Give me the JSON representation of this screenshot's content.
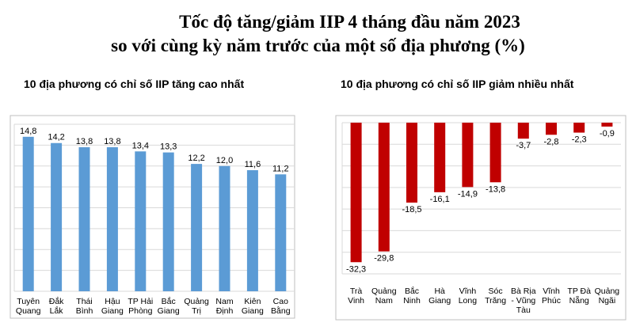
{
  "title_line1": "Tốc độ tăng/giảm IIP 4 tháng đầu năm 2023",
  "title_line2": "so với cùng kỳ năm trước của một số địa phương (%)",
  "chart_data": [
    {
      "type": "bar",
      "title": "10 địa phương có chỉ số IIP tăng cao nhất",
      "categories": [
        [
          "Tuyên",
          "Quang"
        ],
        [
          "Đắk",
          "Lắk"
        ],
        [
          "Thái",
          "Bình"
        ],
        [
          "Hậu",
          "Giang"
        ],
        [
          "TP Hải",
          "Phòng"
        ],
        [
          "Bắc",
          "Giang"
        ],
        [
          "Quảng",
          "Trị"
        ],
        [
          "Nam",
          "Định"
        ],
        [
          "Kiên",
          "Giang"
        ],
        [
          "Cao",
          "Bằng"
        ]
      ],
      "values": [
        14.8,
        14.2,
        13.8,
        13.8,
        13.4,
        13.3,
        12.2,
        12.0,
        11.6,
        11.2
      ],
      "value_labels": [
        "14,8",
        "14,2",
        "13,8",
        "13,8",
        "13,4",
        "13,3",
        "12,2",
        "12,0",
        "11,6",
        "11,2"
      ],
      "ylim": [
        0,
        16
      ],
      "grid": true,
      "color": "#5B9BD5"
    },
    {
      "type": "bar",
      "title": "10 địa phương có chỉ số IIP giảm nhiều nhất",
      "categories": [
        [
          "Trà",
          "Vinh"
        ],
        [
          "Quảng",
          "Nam"
        ],
        [
          "Bắc",
          "Ninh"
        ],
        [
          "Hà",
          "Giang"
        ],
        [
          "Vĩnh",
          "Long"
        ],
        [
          "Sóc",
          "Trăng"
        ],
        [
          "Bà Rịa",
          "- Vũng",
          "Tàu"
        ],
        [
          "Vĩnh",
          "Phúc"
        ],
        [
          "TP Đà",
          "Nẵng"
        ],
        [
          "Quảng",
          "Ngãi"
        ]
      ],
      "values": [
        -32.3,
        -29.8,
        -18.5,
        -16.1,
        -14.9,
        -13.8,
        -3.7,
        -2.8,
        -2.3,
        -0.9
      ],
      "value_labels": [
        "-32,3",
        "-29,8",
        "-18,5",
        "-16,1",
        "-14,9",
        "-13,8",
        "-3,7",
        "-2,8",
        "-2,3",
        "-0,9"
      ],
      "ylim": [
        -35,
        0
      ],
      "grid": true,
      "color": "#C00000"
    }
  ]
}
